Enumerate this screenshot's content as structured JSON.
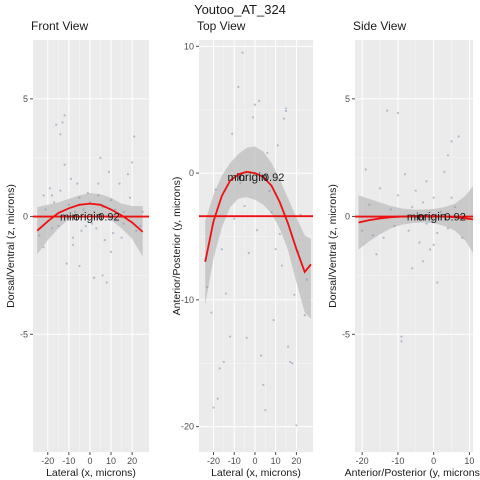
{
  "figure_title": "Youtoo_AT_324",
  "colors": {
    "panel": "#ebebeb",
    "grid_major": "#ffffff",
    "fit": "#ee1111",
    "ribbon": "#bdbdbd",
    "point": "#7b93b0",
    "text": "#1a1a1a",
    "tick": "#4d4d4d"
  },
  "chart_data": [
    {
      "type": "scatter",
      "title": "Front View",
      "xlabel": "Lateral (x, microns)",
      "ylabel": "Dorsal/Ventral (z, microns)",
      "xlim": [
        -27,
        28
      ],
      "ylim": [
        -10,
        7.5
      ],
      "xticks": [
        -20,
        -10,
        0,
        10,
        20
      ],
      "yticks": [
        -5,
        0,
        5
      ],
      "grid": true,
      "annotations": [
        "min",
        "origin",
        "0.92"
      ],
      "annotation_x": [
        -10,
        -1,
        9
      ],
      "annotation_y": 0,
      "hline_y": 0,
      "series": [
        {
          "label": "fit",
          "x": [
            -25,
            -20,
            -15,
            -10,
            -5,
            0,
            5,
            10,
            15,
            20,
            25
          ],
          "y": [
            -0.6,
            -0.2,
            0.15,
            0.35,
            0.5,
            0.55,
            0.5,
            0.3,
            0.05,
            -0.25,
            -0.65
          ]
        },
        {
          "label": "band_upper",
          "x": [
            -25,
            -20,
            -15,
            -10,
            -5,
            0,
            5,
            10,
            15,
            20,
            25
          ],
          "y": [
            0.4,
            0.5,
            0.6,
            0.75,
            0.9,
            1.0,
            0.95,
            0.8,
            0.55,
            0.45,
            0.45
          ]
        },
        {
          "label": "band_lower",
          "x": [
            -25,
            -20,
            -15,
            -10,
            -5,
            0,
            5,
            10,
            15,
            20,
            25
          ],
          "y": [
            -1.6,
            -1.0,
            -0.5,
            -0.1,
            0.1,
            0.1,
            0.05,
            -0.15,
            -0.5,
            -0.95,
            -1.7
          ]
        },
        {
          "label": "points",
          "x": [
            -24,
            -22,
            -21,
            -19,
            -18,
            -17,
            -16,
            -15,
            -14,
            -13,
            -12,
            -11,
            -10,
            -9,
            -8,
            -7,
            -6,
            -5,
            -4,
            -3,
            -2,
            -1,
            0,
            1,
            2,
            3,
            4,
            5,
            6,
            7,
            8,
            9,
            10,
            11,
            12,
            14,
            15,
            16,
            18,
            20,
            22,
            24,
            -22,
            -14,
            -8,
            2,
            6,
            10,
            19,
            25,
            -18,
            -12,
            4,
            16,
            -5,
            21
          ],
          "y": [
            -0.8,
            0.9,
            0.3,
            1.2,
            -0.5,
            0.6,
            3.9,
            -0.4,
            1.1,
            4.0,
            2.2,
            -2.0,
            0.5,
            1.6,
            -1.2,
            0.2,
            1.4,
            0.8,
            -0.6,
            0.3,
            -0.4,
            1.0,
            0.6,
            -0.3,
            0.2,
            -0.5,
            0.9,
            2.5,
            0.4,
            -1.0,
            -2.8,
            1.9,
            0.7,
            -0.7,
            0.3,
            1.4,
            -0.9,
            0.2,
            1.8,
            2.3,
            -0.6,
            -0.4,
            -1.3,
            3.5,
            -0.9,
            -2.6,
            -2.5,
            -1.5,
            0.8,
            0.2,
            0.9,
            4.3,
            1.4,
            -0.3,
            -2.1,
            3.4
          ]
        }
      ]
    },
    {
      "type": "scatter",
      "title": "Top View",
      "xlabel": "Lateral (x, microns)",
      "ylabel": "Anterior/Posterior (y, microns)",
      "xlim": [
        -27,
        28
      ],
      "ylim": [
        -22,
        10.5
      ],
      "xticks": [
        -20,
        -10,
        0,
        10,
        20
      ],
      "yticks": [
        -20,
        -10,
        0,
        10
      ],
      "grid": true,
      "annotations": [
        "min",
        "origin",
        "0.92"
      ],
      "annotation_x": [
        -9,
        -1,
        9
      ],
      "annotation_y": -0.3,
      "hline_y": -3.4,
      "series": [
        {
          "label": "fit",
          "x": [
            -24,
            -20,
            -16,
            -12,
            -8,
            -4,
            0,
            4,
            8,
            12,
            16,
            20,
            24,
            27
          ],
          "y": [
            -7.0,
            -3.8,
            -1.8,
            -0.6,
            -0.1,
            0.1,
            0.0,
            -0.3,
            -1.0,
            -2.3,
            -4.0,
            -6.0,
            -7.8,
            -7.2
          ]
        },
        {
          "label": "band_upper",
          "x": [
            -24,
            -20,
            -16,
            -12,
            -8,
            -4,
            0,
            4,
            8,
            12,
            16,
            20,
            24,
            27
          ],
          "y": [
            -3.8,
            -1.7,
            -0.2,
            0.8,
            1.5,
            2.0,
            2.1,
            1.7,
            0.8,
            -0.5,
            -2.0,
            -3.5,
            -4.9,
            -5.2
          ]
        },
        {
          "label": "band_lower",
          "x": [
            -24,
            -20,
            -16,
            -12,
            -8,
            -4,
            0,
            4,
            8,
            12,
            16,
            20,
            24,
            27
          ],
          "y": [
            -10.4,
            -6.7,
            -4.3,
            -2.7,
            -2.0,
            -1.9,
            -2.1,
            -2.5,
            -3.2,
            -4.4,
            -6.1,
            -8.6,
            -11.0,
            -11.5
          ]
        },
        {
          "label": "points",
          "x": [
            -23,
            -21,
            -20,
            -18,
            -17,
            -15,
            -14,
            -12,
            -10,
            -9,
            -8,
            -6,
            -5,
            -4,
            -2,
            -1,
            0,
            2,
            3,
            4,
            5,
            6,
            8,
            9,
            10,
            12,
            14,
            15,
            15,
            16,
            17,
            18,
            19,
            20,
            22,
            24,
            -19,
            -16,
            -11,
            -7,
            -3,
            1,
            7,
            11,
            13,
            16,
            21,
            25
          ],
          "y": [
            -9.0,
            -11.0,
            -18.5,
            -17.8,
            -15.4,
            -14.9,
            -9.5,
            -12.9,
            -3.6,
            -0.2,
            6.8,
            9.5,
            -2.6,
            -13.0,
            -0.5,
            4.4,
            5.4,
            5.7,
            -14.4,
            -16.7,
            -18.7,
            1.6,
            -3.1,
            -11.6,
            -6.0,
            -4.8,
            4.3,
            4.9,
            5.1,
            -13.7,
            -14.9,
            -15.0,
            -9.6,
            -19.9,
            -3.3,
            -11.2,
            -1.3,
            -6.0,
            3.1,
            -0.8,
            -6.3,
            -4.5,
            -1.4,
            2.2,
            -7.3,
            -4.0,
            -6.2,
            -8.4
          ]
        }
      ]
    },
    {
      "type": "scatter",
      "title": "Side View",
      "xlabel": "Anterior/Posterior (y, microns)",
      "ylabel": "Dorsal/Ventral (z, microns)",
      "xlim": [
        -22,
        11
      ],
      "ylim": [
        -10,
        7.5
      ],
      "xticks": [
        -20,
        -10,
        0,
        10
      ],
      "yticks": [
        -5,
        0,
        5
      ],
      "grid": true,
      "annotations": [
        "min",
        "origin",
        "0.92"
      ],
      "annotation_x": [
        -5,
        -0.5,
        6
      ],
      "annotation_y": 0,
      "hline_y": 0,
      "series": [
        {
          "label": "fit",
          "x": [
            -21,
            -18,
            -15,
            -12,
            -9,
            -6,
            -3,
            0,
            3,
            6,
            9,
            11
          ],
          "y": [
            -0.25,
            -0.15,
            -0.08,
            -0.03,
            0.0,
            0.02,
            0.03,
            0.02,
            0.0,
            -0.03,
            -0.08,
            -0.12
          ]
        },
        {
          "label": "band_upper",
          "x": [
            -21,
            -18,
            -15,
            -12,
            -9,
            -6,
            -3,
            0,
            3,
            6,
            9,
            11
          ],
          "y": [
            0.9,
            0.75,
            0.6,
            0.45,
            0.35,
            0.3,
            0.3,
            0.32,
            0.4,
            0.55,
            0.9,
            1.3
          ]
        },
        {
          "label": "band_lower",
          "x": [
            -21,
            -18,
            -15,
            -12,
            -9,
            -6,
            -3,
            0,
            3,
            6,
            9,
            11
          ],
          "y": [
            -1.4,
            -1.05,
            -0.75,
            -0.5,
            -0.35,
            -0.28,
            -0.25,
            -0.28,
            -0.4,
            -0.6,
            -1.05,
            -1.55
          ]
        },
        {
          "label": "points",
          "x": [
            -20,
            -18,
            -17,
            -15,
            -14,
            -13,
            -12,
            -11,
            -10,
            -9,
            -8,
            -7,
            -6,
            -5,
            -4,
            -3,
            -2,
            -1,
            0,
            1,
            2,
            3,
            4,
            5,
            6,
            7,
            8,
            -19,
            -16,
            -10,
            -6,
            -2,
            1,
            4,
            -9,
            -3,
            0,
            5
          ],
          "y": [
            -0.6,
            0.5,
            -0.8,
            1.2,
            -0.9,
            4.5,
            0.3,
            -0.4,
            0.9,
            -5.1,
            1.8,
            -0.6,
            0.4,
            1.1,
            -1.1,
            0.6,
            -0.3,
            -1.4,
            0.8,
            -2.8,
            0.2,
            1.9,
            -0.5,
            3.2,
            0.4,
            3.4,
            -0.9,
            2.0,
            -1.6,
            4.4,
            -2.2,
            1.5,
            -0.7,
            2.6,
            -5.3,
            -1.9,
            -1.2,
            0.8
          ]
        }
      ]
    }
  ]
}
